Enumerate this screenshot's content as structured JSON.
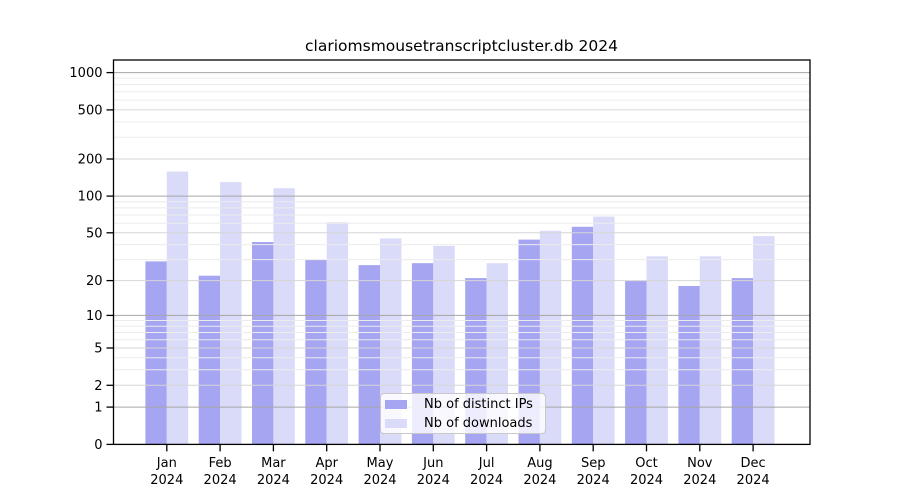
{
  "title": "clariomsmousetranscriptcluster.db 2024",
  "chart_data": {
    "type": "bar",
    "title": "clariomsmousetranscriptcluster.db 2024",
    "categories": [
      "Jan",
      "Feb",
      "Mar",
      "Apr",
      "May",
      "Jun",
      "Jul",
      "Aug",
      "Sep",
      "Oct",
      "Nov",
      "Dec"
    ],
    "x_tick_year": "2024",
    "series": [
      {
        "name": "Nb of distinct IPs",
        "color": "#a5a5f2",
        "values": [
          29,
          22,
          42,
          30,
          27,
          28,
          21,
          44,
          56,
          20,
          18,
          21
        ]
      },
      {
        "name": "Nb of downloads",
        "color": "#dadaf9",
        "values": [
          158,
          130,
          116,
          61,
          45,
          39,
          28,
          52,
          68,
          32,
          32,
          47
        ]
      }
    ],
    "y_scale": "log10(value+1)",
    "y_ticks": [
      0,
      1,
      2,
      5,
      10,
      20,
      50,
      100,
      200,
      500,
      1000
    ],
    "y_minor_ticks": [
      3,
      4,
      6,
      7,
      8,
      9,
      30,
      40,
      60,
      70,
      80,
      90,
      300,
      400,
      600,
      700,
      800,
      900
    ],
    "ylim": [
      0,
      1200
    ],
    "xlabel": "",
    "ylabel": "",
    "grid": true,
    "legend": {
      "position": "bottom-center",
      "entries": [
        "Nb of distinct IPs",
        "Nb of downloads"
      ]
    },
    "colors": {
      "grid_minor": "#ececec",
      "grid_major": "#d6d6d6",
      "grid_power10": "#a6a6a6",
      "frame": "#000000",
      "text": "#000000",
      "background": "#ffffff"
    }
  }
}
